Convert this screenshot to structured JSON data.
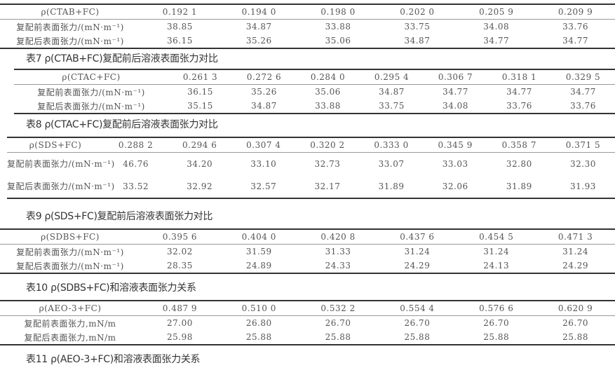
{
  "tables": [
    {
      "header": [
        "ρ(CTAB+FC)",
        "0.192 1",
        "0.194 0",
        "0.198 0",
        "0.202 0",
        "0.205 9",
        "0.209 9"
      ],
      "rows": [
        [
          "复配前表面张力/(mN·m⁻¹)",
          "38.85",
          "34.87",
          "33.88",
          "33.75",
          "34.08",
          "33.76"
        ],
        [
          "复配后表面张力/(mN·m⁻¹)",
          "36.15",
          "35.26",
          "35.06",
          "34.87",
          "34.77",
          "34.77"
        ]
      ],
      "caption": "表7 ρ(CTAB+FC)复配前后溶液表面张力对比"
    },
    {
      "header": [
        "ρ(CTAC+FC)",
        "0.261 3",
        "0.272 6",
        "0.284 0",
        "0.295 4",
        "0.306 7",
        "0.318 1",
        "0.329 5"
      ],
      "rows": [
        [
          "复配前表面张力/(mN·m⁻¹)",
          "36.15",
          "35.26",
          "35.06",
          "34.87",
          "34.77",
          "34.77",
          "34.77"
        ],
        [
          "复配后表面张力/(mN·m⁻¹)",
          "35.15",
          "34.87",
          "33.88",
          "33.75",
          "34.08",
          "33.76",
          "33.76"
        ]
      ],
      "caption": "表8 ρ(CTAC+FC)复配前后溶液表面张力对比"
    },
    {
      "header": [
        "ρ(SDS+FC)",
        "0.288 2",
        "0.294 6",
        "0.307 4",
        "0.320 2",
        "0.333 0",
        "0.345 9",
        "0.358 7",
        "0.371 5"
      ],
      "rows": [
        [
          "复配前表面张力/(mN·m⁻¹)",
          "46.76",
          "34.20",
          "33.10",
          "32.73",
          "33.07",
          "33.03",
          "32.80",
          "32.30"
        ],
        [
          "复配后表面张力/(mN·m⁻¹)",
          "33.52",
          "32.92",
          "32.57",
          "32.17",
          "31.89",
          "32.06",
          "31.89",
          "31.93"
        ]
      ],
      "caption": "表9 ρ(SDS+FC)复配前后溶液表面张力对比"
    },
    {
      "header": [
        "ρ(SDBS+FC)",
        "0.395 6",
        "0.404 0",
        "0.420 8",
        "0.437 6",
        "0.454 5",
        "0.471 3"
      ],
      "rows": [
        [
          "复配前表面张力/(mN·m⁻¹)",
          "32.02",
          "31.59",
          "31.33",
          "31.24",
          "31.24",
          "31.24"
        ],
        [
          "复配后表面张力/(mN·m⁻¹)",
          "28.35",
          "24.89",
          "24.33",
          "24.29",
          "24.13",
          "24.29"
        ]
      ],
      "caption": "表10 ρ(SDBS+FC)和溶液表面张力关系"
    },
    {
      "header": [
        "ρ(AEO-3+FC)",
        "0.487 9",
        "0.510 0",
        "0.532 2",
        "0.554 4",
        "0.576 6",
        "0.620 9"
      ],
      "rows": [
        [
          "复配前表面张力,mN/m",
          "27.00",
          "26.80",
          "26.70",
          "26.70",
          "26.70",
          "26.70"
        ],
        [
          "复配后表面张力,mN/m",
          "25.98",
          "25.88",
          "25.88",
          "25.88",
          "25.88",
          "25.88"
        ]
      ],
      "caption": "表11 ρ(AEO-3+FC)和溶液表面张力关系"
    }
  ]
}
